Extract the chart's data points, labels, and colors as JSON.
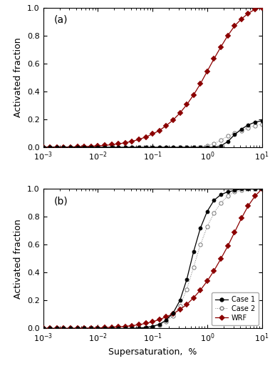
{
  "title_a": "(a)",
  "title_b": "(b)",
  "xlabel": "Supersaturation,  %",
  "ylabel": "Activated fraction",
  "ylim": [
    0,
    1.0
  ],
  "yticks": [
    0.0,
    0.2,
    0.4,
    0.6,
    0.8,
    1.0
  ],
  "wrf_color": "#8B0000",
  "case1_color": "#000000",
  "case2_color": "#777777",
  "panel_a": {
    "wrf_x": [
      0.001,
      0.00133,
      0.00178,
      0.00237,
      0.00316,
      0.00422,
      0.00562,
      0.0075,
      0.01,
      0.01334,
      0.01778,
      0.02371,
      0.03162,
      0.04217,
      0.05623,
      0.07499,
      0.1,
      0.13335,
      0.17783,
      0.23714,
      0.31623,
      0.4217,
      0.56234,
      0.74989,
      1.0,
      1.33352,
      1.77828,
      2.37137,
      3.16228,
      4.21697,
      5.62341,
      7.49894,
      10.0
    ],
    "wrf_y": [
      0.0,
      0.0,
      0.0005,
      0.001,
      0.002,
      0.003,
      0.005,
      0.007,
      0.01,
      0.013,
      0.018,
      0.024,
      0.032,
      0.042,
      0.056,
      0.073,
      0.095,
      0.12,
      0.155,
      0.195,
      0.245,
      0.305,
      0.375,
      0.455,
      0.545,
      0.635,
      0.72,
      0.8,
      0.87,
      0.92,
      0.96,
      0.99,
      1.0
    ],
    "case1_x": [
      0.001,
      0.00133,
      0.00178,
      0.00237,
      0.00316,
      0.00422,
      0.00562,
      0.0075,
      0.01,
      0.01334,
      0.01778,
      0.02371,
      0.03162,
      0.04217,
      0.05623,
      0.07499,
      0.1,
      0.13335,
      0.17783,
      0.23714,
      0.31623,
      0.4217,
      0.56234,
      0.74989,
      1.0,
      1.33352,
      1.77828,
      2.37137,
      3.16228,
      4.21697,
      5.62341,
      7.49894,
      10.0
    ],
    "case1_y": [
      0.0,
      0.0,
      0.0,
      0.0,
      0.0,
      0.0,
      0.0,
      0.0,
      0.0,
      0.0,
      0.0,
      0.0,
      0.0,
      0.0,
      0.0,
      0.0,
      0.0,
      0.0,
      0.0,
      0.0,
      0.0,
      0.0,
      0.0,
      0.0,
      0.0,
      0.0,
      0.01,
      0.04,
      0.09,
      0.13,
      0.16,
      0.18,
      0.19
    ],
    "case2_x": [
      0.001,
      0.00133,
      0.00178,
      0.00237,
      0.00316,
      0.00422,
      0.00562,
      0.0075,
      0.01,
      0.01334,
      0.01778,
      0.02371,
      0.03162,
      0.04217,
      0.05623,
      0.07499,
      0.1,
      0.13335,
      0.17783,
      0.23714,
      0.31623,
      0.4217,
      0.56234,
      0.74989,
      1.0,
      1.33352,
      1.77828,
      2.37137,
      3.16228,
      4.21697,
      5.62341,
      7.49894,
      10.0
    ],
    "case2_y": [
      0.0,
      0.0,
      0.0,
      0.0,
      0.0,
      0.0,
      0.0,
      0.0,
      0.0,
      0.0,
      0.0,
      0.0,
      0.0,
      0.0,
      0.0,
      0.0,
      0.0,
      0.0,
      0.0,
      0.0,
      0.0,
      0.0,
      0.0,
      0.002,
      0.01,
      0.025,
      0.05,
      0.08,
      0.1,
      0.12,
      0.14,
      0.155,
      0.165
    ]
  },
  "panel_b": {
    "wrf_x": [
      0.001,
      0.00133,
      0.00178,
      0.00237,
      0.00316,
      0.00422,
      0.00562,
      0.0075,
      0.01,
      0.01334,
      0.01778,
      0.02371,
      0.03162,
      0.04217,
      0.05623,
      0.07499,
      0.1,
      0.13335,
      0.17783,
      0.23714,
      0.31623,
      0.4217,
      0.56234,
      0.74989,
      1.0,
      1.33352,
      1.77828,
      2.37137,
      3.16228,
      4.21697,
      5.62341,
      7.49894,
      10.0
    ],
    "wrf_y": [
      0.0,
      0.0,
      0.0,
      0.0,
      0.001,
      0.001,
      0.002,
      0.003,
      0.004,
      0.006,
      0.008,
      0.011,
      0.015,
      0.02,
      0.027,
      0.036,
      0.048,
      0.064,
      0.083,
      0.105,
      0.135,
      0.172,
      0.22,
      0.275,
      0.34,
      0.415,
      0.5,
      0.59,
      0.69,
      0.79,
      0.88,
      0.95,
      1.0
    ],
    "case1_x": [
      0.001,
      0.00133,
      0.00178,
      0.00237,
      0.00316,
      0.00422,
      0.00562,
      0.0075,
      0.01,
      0.01334,
      0.01778,
      0.02371,
      0.03162,
      0.04217,
      0.05623,
      0.07499,
      0.1,
      0.13335,
      0.17783,
      0.23714,
      0.31623,
      0.4217,
      0.56234,
      0.74989,
      1.0,
      1.33352,
      1.77828,
      2.37137,
      3.16228,
      4.21697,
      5.62341,
      7.49894,
      10.0
    ],
    "case1_y": [
      0.0,
      0.0,
      0.0,
      0.0,
      0.0,
      0.0,
      0.0,
      0.0,
      0.0,
      0.0,
      0.0,
      0.0,
      0.0,
      0.001,
      0.003,
      0.007,
      0.015,
      0.03,
      0.06,
      0.11,
      0.2,
      0.35,
      0.55,
      0.72,
      0.84,
      0.92,
      0.96,
      0.98,
      0.99,
      1.0,
      1.0,
      1.0,
      1.0
    ],
    "case2_x": [
      0.001,
      0.00133,
      0.00178,
      0.00237,
      0.00316,
      0.00422,
      0.00562,
      0.0075,
      0.01,
      0.01334,
      0.01778,
      0.02371,
      0.03162,
      0.04217,
      0.05623,
      0.07499,
      0.1,
      0.13335,
      0.17783,
      0.23714,
      0.31623,
      0.4217,
      0.56234,
      0.74989,
      1.0,
      1.33352,
      1.77828,
      2.37137,
      3.16228,
      4.21697,
      5.62341,
      7.49894,
      10.0
    ],
    "case2_y": [
      0.0,
      0.0,
      0.0,
      0.0,
      0.0,
      0.0,
      0.0,
      0.0,
      0.0,
      0.0,
      0.0,
      0.0,
      0.0,
      0.001,
      0.002,
      0.005,
      0.012,
      0.025,
      0.05,
      0.09,
      0.16,
      0.28,
      0.44,
      0.6,
      0.73,
      0.83,
      0.9,
      0.95,
      0.98,
      0.99,
      1.0,
      1.0,
      1.0
    ]
  },
  "legend_labels": [
    "Case 1",
    "Case 2",
    "WRF"
  ],
  "fontsize_label": 9,
  "fontsize_tick": 8,
  "fontsize_panel": 10
}
